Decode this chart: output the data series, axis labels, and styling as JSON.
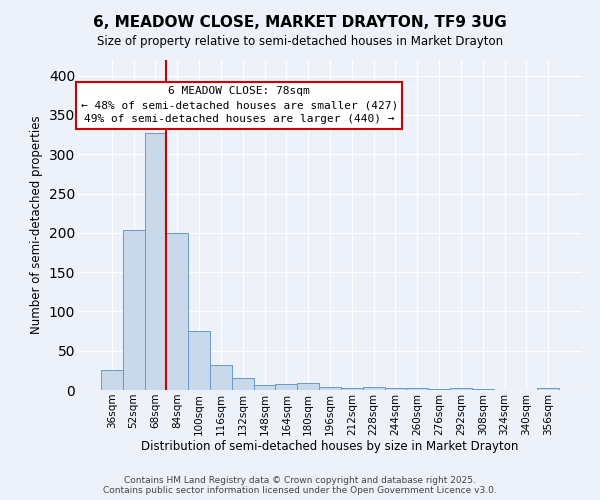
{
  "title": "6, MEADOW CLOSE, MARKET DRAYTON, TF9 3UG",
  "subtitle": "Size of property relative to semi-detached houses in Market Drayton",
  "xlabel": "Distribution of semi-detached houses by size in Market Drayton",
  "ylabel": "Number of semi-detached properties",
  "categories": [
    "36sqm",
    "52sqm",
    "68sqm",
    "84sqm",
    "100sqm",
    "116sqm",
    "132sqm",
    "148sqm",
    "164sqm",
    "180sqm",
    "196sqm",
    "212sqm",
    "228sqm",
    "244sqm",
    "260sqm",
    "276sqm",
    "292sqm",
    "308sqm",
    "324sqm",
    "340sqm",
    "356sqm"
  ],
  "values": [
    25,
    203,
    327,
    200,
    75,
    32,
    15,
    7,
    8,
    9,
    4,
    2,
    4,
    3,
    2,
    1,
    3,
    1,
    0,
    0,
    3
  ],
  "bar_color": "#c9d9ea",
  "bar_edge_color": "#6699cc",
  "vline_position": 2.5,
  "vline_color": "#cc0000",
  "annotation_title": "6 MEADOW CLOSE: 78sqm",
  "annotation_line1": "← 48% of semi-detached houses are smaller (427)",
  "annotation_line2": "49% of semi-detached houses are larger (440) →",
  "annotation_box_facecolor": "#ffffff",
  "annotation_box_edgecolor": "#cc0000",
  "footer_line1": "Contains HM Land Registry data © Crown copyright and database right 2025.",
  "footer_line2": "Contains public sector information licensed under the Open Government Licence v3.0.",
  "background_color": "#edf1f9",
  "ylim": [
    0,
    420
  ],
  "yticks": [
    0,
    50,
    100,
    150,
    200,
    250,
    300,
    350,
    400
  ]
}
